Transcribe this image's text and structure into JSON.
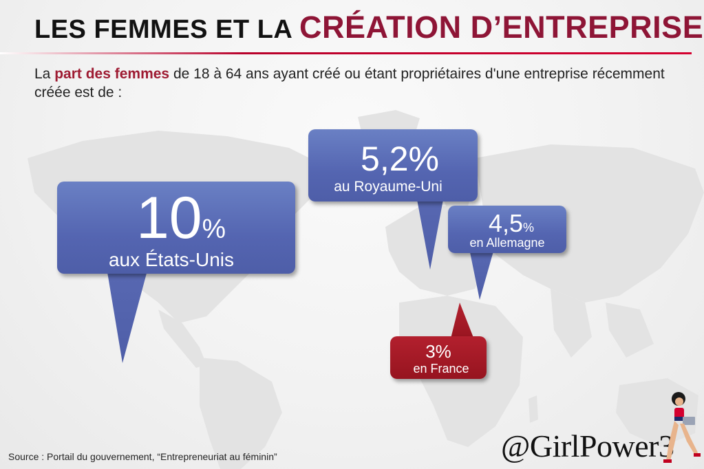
{
  "header": {
    "title_part1": "LES FEMMES ET LA ",
    "title_part2": "CRÉATION D’ENTREPRISE"
  },
  "intro": {
    "prefix": "La ",
    "highlight": "part des femmes",
    "suffix": " de 18 à 64 ans ayant créé ou étant propriétaires d'une entreprise récemment créée est de :"
  },
  "bubbles": {
    "us": {
      "number": "10",
      "unit": "%",
      "label": "aux États-Unis",
      "color": "#5566b0"
    },
    "uk": {
      "value": "5,2%",
      "label": "au Royaume-Uni",
      "color": "#5566b0"
    },
    "de": {
      "number": "4,5",
      "unit": "%",
      "label": "en Allemagne",
      "color": "#5566b0"
    },
    "fr": {
      "value": "3%",
      "label": "en France",
      "color": "#9e1b22"
    }
  },
  "footer": {
    "source": "Source : Portail du gouvernement, “Entrepreneuriat au féminin”",
    "handle": "@GirlPower3"
  },
  "icons": {
    "mascot": "woman-with-laptop-icon",
    "map": "world-map"
  }
}
